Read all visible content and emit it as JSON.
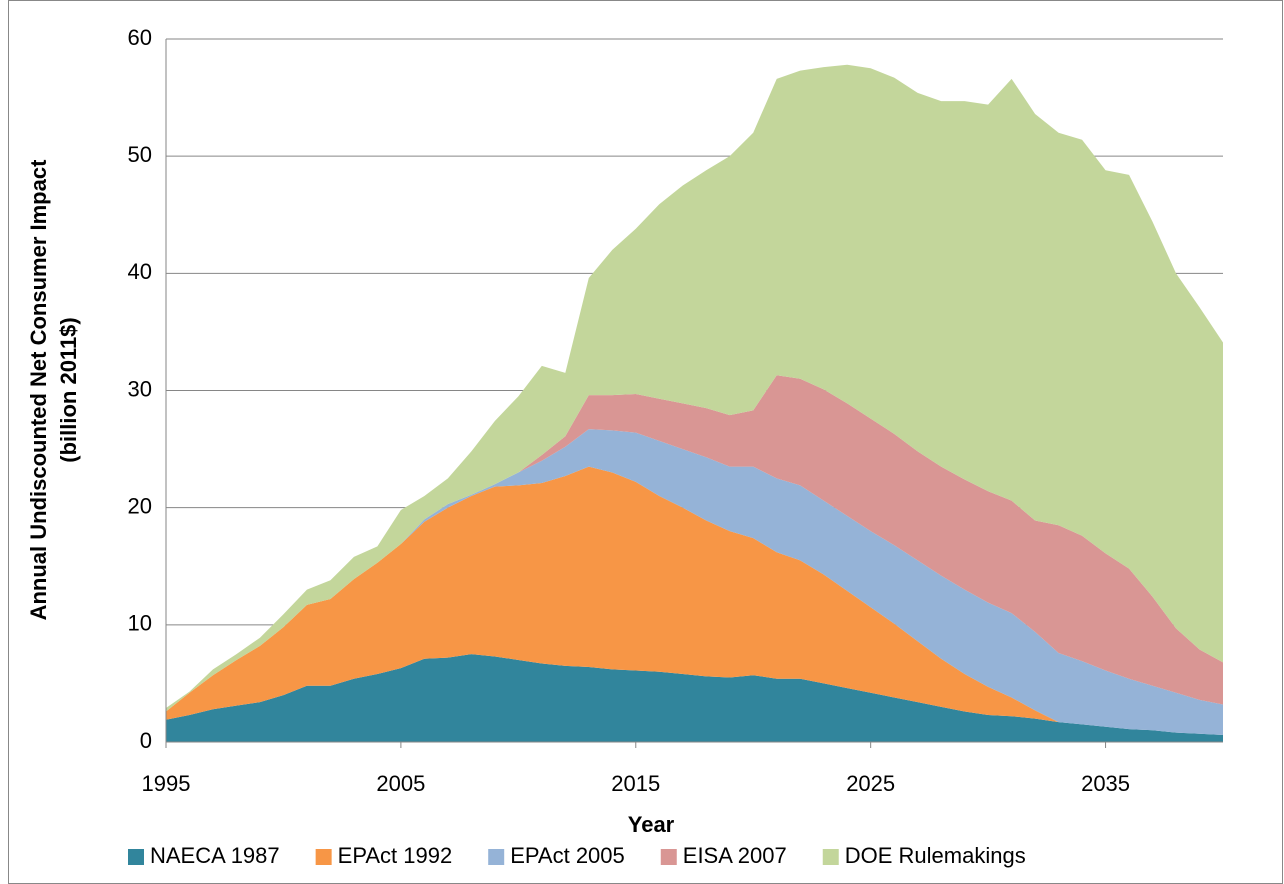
{
  "chart_data": {
    "type": "stacked-area",
    "xlabel": "Year",
    "ylabel": [
      "Annual Undiscounted Net Consumer Impact",
      "(billion 2011$)"
    ],
    "x": [
      1995,
      1996,
      1997,
      1998,
      1999,
      2000,
      2001,
      2002,
      2003,
      2004,
      2005,
      2006,
      2007,
      2008,
      2009,
      2010,
      2011,
      2012,
      2013,
      2014,
      2015,
      2016,
      2017,
      2018,
      2019,
      2020,
      2021,
      2022,
      2023,
      2024,
      2025,
      2026,
      2027,
      2028,
      2029,
      2030,
      2031,
      2032,
      2033,
      2034,
      2035,
      2036,
      2037,
      2038,
      2039,
      2040
    ],
    "xlim": [
      1995,
      2040
    ],
    "xticks": [
      1995,
      2005,
      2015,
      2025,
      2035
    ],
    "ylim": [
      0,
      60
    ],
    "yticks": [
      0,
      10,
      20,
      30,
      40,
      50,
      60
    ],
    "grid": true,
    "legend": "bottom",
    "series": [
      {
        "name": "NAECA 1987",
        "color": "#31859c",
        "values": [
          1.9,
          2.3,
          2.8,
          3.1,
          3.4,
          4.0,
          4.8,
          4.8,
          5.4,
          5.8,
          6.3,
          7.1,
          7.2,
          7.5,
          7.3,
          7.0,
          6.7,
          6.5,
          6.4,
          6.2,
          6.1,
          6.0,
          5.8,
          5.6,
          5.5,
          5.7,
          5.4,
          5.4,
          5.0,
          4.6,
          4.2,
          3.8,
          3.4,
          3.0,
          2.6,
          2.3,
          2.2,
          2.0,
          1.7,
          1.5,
          1.3,
          1.1,
          1.0,
          0.8,
          0.7,
          0.6
        ]
      },
      {
        "name": "EPAct 1992",
        "color": "#f79646",
        "values": [
          0.7,
          1.9,
          2.9,
          3.9,
          4.8,
          5.8,
          6.9,
          7.4,
          8.5,
          9.5,
          10.6,
          11.7,
          12.8,
          13.5,
          14.5,
          14.9,
          15.4,
          16.2,
          17.1,
          16.8,
          16.1,
          15.0,
          14.2,
          13.3,
          12.5,
          11.7,
          10.8,
          10.1,
          9.3,
          8.3,
          7.3,
          6.3,
          5.2,
          4.1,
          3.2,
          2.4,
          1.6,
          0.7,
          0,
          0,
          0,
          0,
          0,
          0,
          0,
          0
        ]
      },
      {
        "name": "EPAct 2005",
        "color": "#95b3d7",
        "values": [
          0,
          0,
          0,
          0,
          0,
          0,
          0,
          0,
          0,
          0,
          0,
          0.2,
          0.3,
          0.1,
          0.2,
          1.1,
          1.9,
          2.5,
          3.2,
          3.6,
          4.2,
          4.7,
          5.0,
          5.4,
          5.5,
          6.1,
          6.3,
          6.4,
          6.3,
          6.4,
          6.5,
          6.7,
          6.9,
          7.1,
          7.2,
          7.2,
          7.2,
          6.7,
          5.9,
          5.4,
          4.8,
          4.3,
          3.8,
          3.4,
          2.9,
          2.6
        ]
      },
      {
        "name": "EISA 2007",
        "color": "#d99694",
        "values": [
          0,
          0,
          0,
          0,
          0,
          0,
          0,
          0,
          0,
          0,
          0,
          0,
          0,
          0,
          0,
          0,
          0.5,
          0.9,
          2.9,
          3.0,
          3.3,
          3.6,
          3.9,
          4.2,
          4.4,
          4.8,
          8.8,
          9.1,
          9.5,
          9.6,
          9.6,
          9.5,
          9.3,
          9.3,
          9.4,
          9.5,
          9.6,
          9.5,
          10.9,
          10.7,
          10.0,
          9.4,
          7.6,
          5.5,
          4.3,
          3.6
        ]
      },
      {
        "name": "DOE Rulemakings",
        "color": "#c3d69b",
        "values": [
          0.3,
          0.1,
          0.5,
          0.5,
          0.7,
          1.1,
          1.3,
          1.6,
          1.9,
          1.4,
          2.9,
          2.0,
          2.2,
          3.7,
          5.4,
          6.5,
          7.6,
          5.4,
          10.0,
          12.4,
          14.1,
          16.6,
          18.6,
          20.3,
          22.1,
          23.7,
          25.3,
          26.3,
          27.5,
          28.9,
          29.9,
          30.4,
          30.6,
          31.2,
          32.3,
          33.0,
          36.0,
          34.7,
          33.5,
          33.8,
          32.7,
          33.6,
          32.0,
          30.3,
          29.2,
          27.3
        ]
      }
    ]
  }
}
